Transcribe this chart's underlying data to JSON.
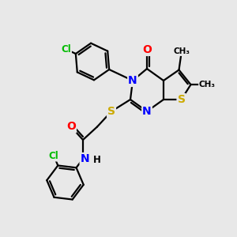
{
  "background_color": "#e8e8e8",
  "atom_colors": {
    "C": "#000000",
    "N": "#0000ff",
    "O": "#ff0000",
    "S": "#ccaa00",
    "Cl": "#00bb00",
    "H": "#000000"
  },
  "bond_color": "#000000",
  "bond_width": 1.6,
  "font_size_atom": 10,
  "font_size_small": 8.5,
  "font_size_methyl": 7.5
}
